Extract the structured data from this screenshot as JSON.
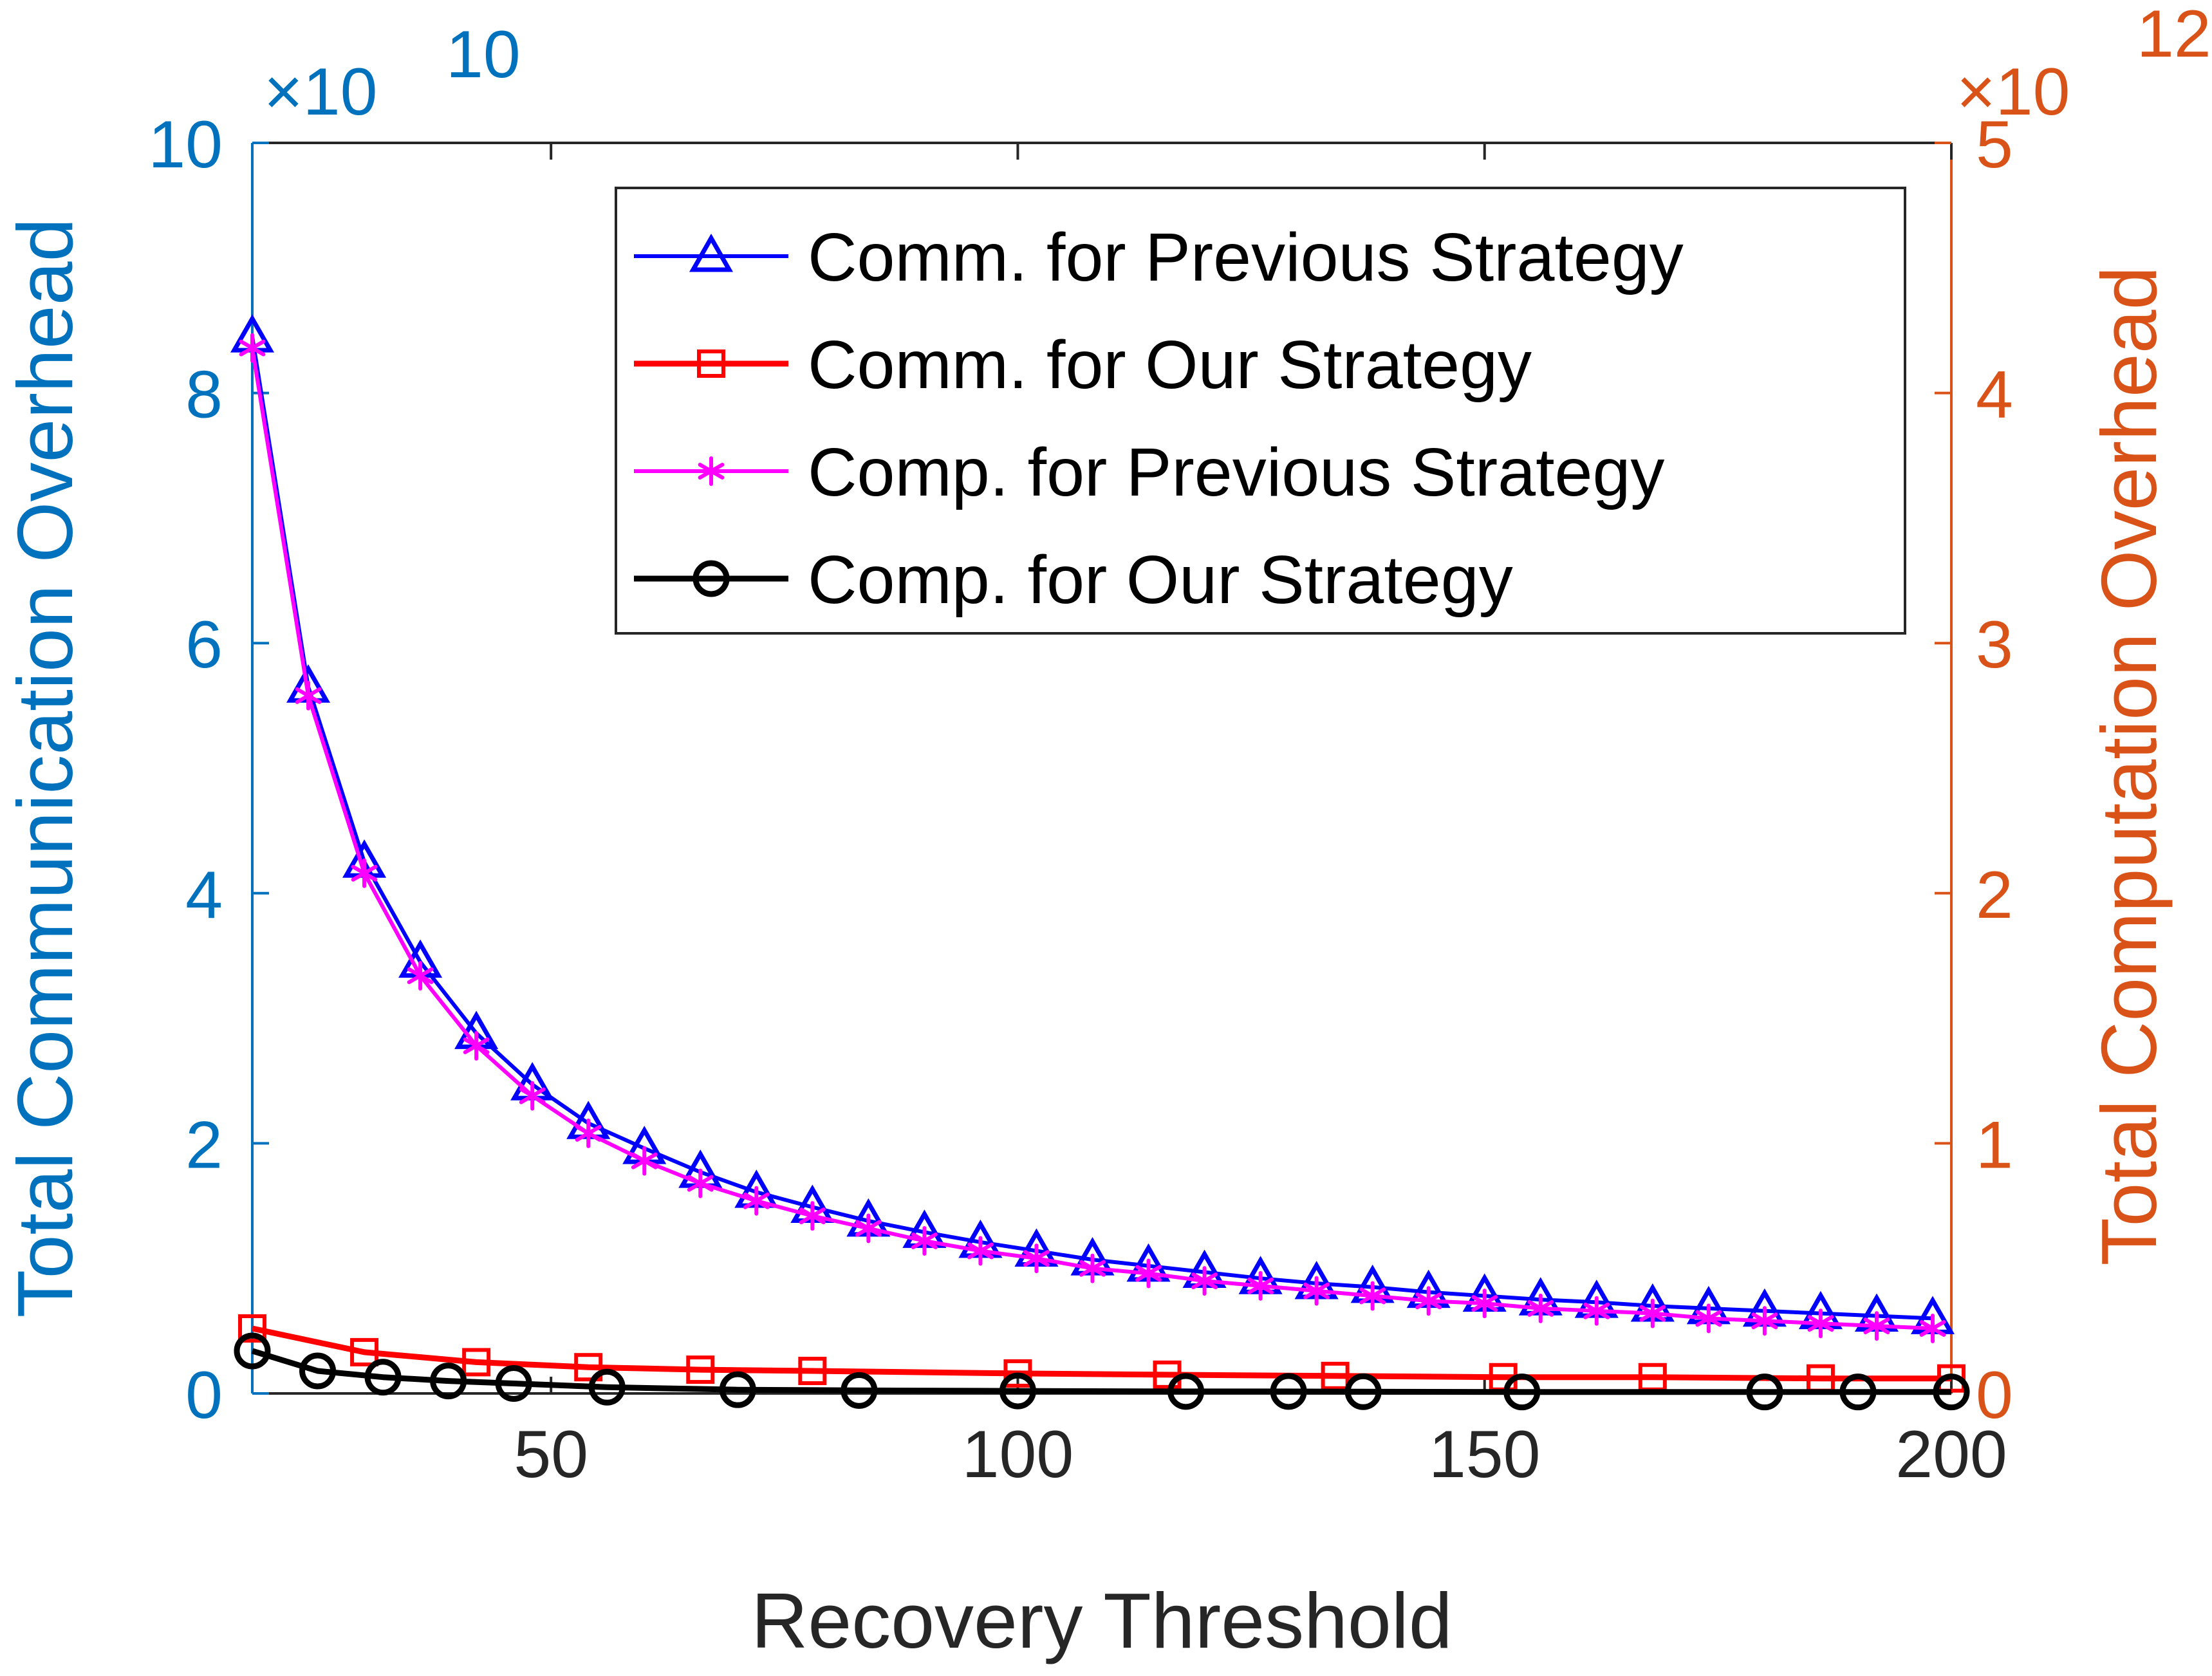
{
  "chart_data": {
    "type": "line",
    "xlabel": "Recovery Threshold",
    "ylabel_left": "Total Communication Overhead",
    "ylabel_right": "Total Computation Overhead",
    "xlim": [
      18,
      200
    ],
    "ylim_left": [
      0,
      10
    ],
    "ylim_right": [
      0,
      5
    ],
    "y_left_exponent": "×10",
    "y_left_exponent_power": "10",
    "y_right_exponent": "×10",
    "y_right_exponent_power": "12",
    "x_ticks": [
      50,
      100,
      150,
      200
    ],
    "x_tick_labels": [
      "50",
      "100",
      "150",
      "200"
    ],
    "y_left_ticks": [
      0,
      2,
      4,
      6,
      8,
      10
    ],
    "y_left_tick_labels": [
      "0",
      "2",
      "4",
      "6",
      "8",
      "10"
    ],
    "y_right_ticks": [
      0,
      1,
      2,
      3,
      4,
      5
    ],
    "y_right_tick_labels": [
      "0",
      "1",
      "2",
      "3",
      "4",
      "5"
    ],
    "legend_position": "top-right",
    "colors": {
      "left_axis": "#0072BD",
      "right_axis": "#D95319",
      "frame": "#262626"
    },
    "series": [
      {
        "name": "Comm. for Previous Strategy",
        "axis": "left",
        "color": "#0000FF",
        "marker": "triangle",
        "x": [
          18,
          24,
          30,
          36,
          42,
          48,
          54,
          60,
          66,
          72,
          78,
          84,
          90,
          96,
          102,
          108,
          114,
          120,
          126,
          132,
          138,
          144,
          150,
          156,
          162,
          168,
          174,
          180,
          186,
          192,
          198
        ],
        "y": [
          8.45,
          5.65,
          4.25,
          3.45,
          2.88,
          2.47,
          2.16,
          1.96,
          1.77,
          1.61,
          1.49,
          1.38,
          1.29,
          1.21,
          1.14,
          1.07,
          1.02,
          0.97,
          0.92,
          0.88,
          0.85,
          0.81,
          0.78,
          0.75,
          0.73,
          0.7,
          0.68,
          0.66,
          0.64,
          0.62,
          0.6
        ]
      },
      {
        "name": "Comm. for Our Strategy",
        "axis": "left",
        "color": "#FF0000",
        "marker": "square",
        "x": [
          18,
          30,
          42,
          54,
          66,
          78,
          100,
          116,
          134,
          152,
          168,
          186,
          200
        ],
        "y": [
          0.52,
          0.33,
          0.25,
          0.21,
          0.19,
          0.18,
          0.16,
          0.15,
          0.14,
          0.13,
          0.13,
          0.12,
          0.12
        ]
      },
      {
        "name": "Comp. for Previous Strategy",
        "axis": "right",
        "color": "#FF00FF",
        "marker": "asterisk",
        "x": [
          18,
          24,
          30,
          36,
          42,
          48,
          54,
          60,
          66,
          72,
          78,
          84,
          90,
          96,
          102,
          108,
          114,
          120,
          126,
          132,
          138,
          144,
          150,
          156,
          162,
          168,
          174,
          180,
          186,
          192,
          198
        ],
        "y": [
          4.18,
          2.79,
          2.08,
          1.67,
          1.39,
          1.19,
          1.04,
          0.93,
          0.84,
          0.77,
          0.71,
          0.66,
          0.61,
          0.57,
          0.54,
          0.5,
          0.48,
          0.45,
          0.43,
          0.41,
          0.39,
          0.37,
          0.36,
          0.34,
          0.33,
          0.32,
          0.3,
          0.29,
          0.28,
          0.27,
          0.26
        ]
      },
      {
        "name": "Comp. for Our Strategy",
        "axis": "right",
        "color": "#000000",
        "marker": "circle",
        "x": [
          18,
          25,
          32,
          39,
          46,
          56,
          70,
          83,
          100,
          118,
          129,
          137,
          154,
          180,
          190,
          200
        ],
        "y": [
          0.17,
          0.09,
          0.065,
          0.05,
          0.04,
          0.025,
          0.015,
          0.012,
          0.01,
          0.008,
          0.008,
          0.007,
          0.006,
          0.006,
          0.006,
          0.006
        ]
      }
    ]
  }
}
